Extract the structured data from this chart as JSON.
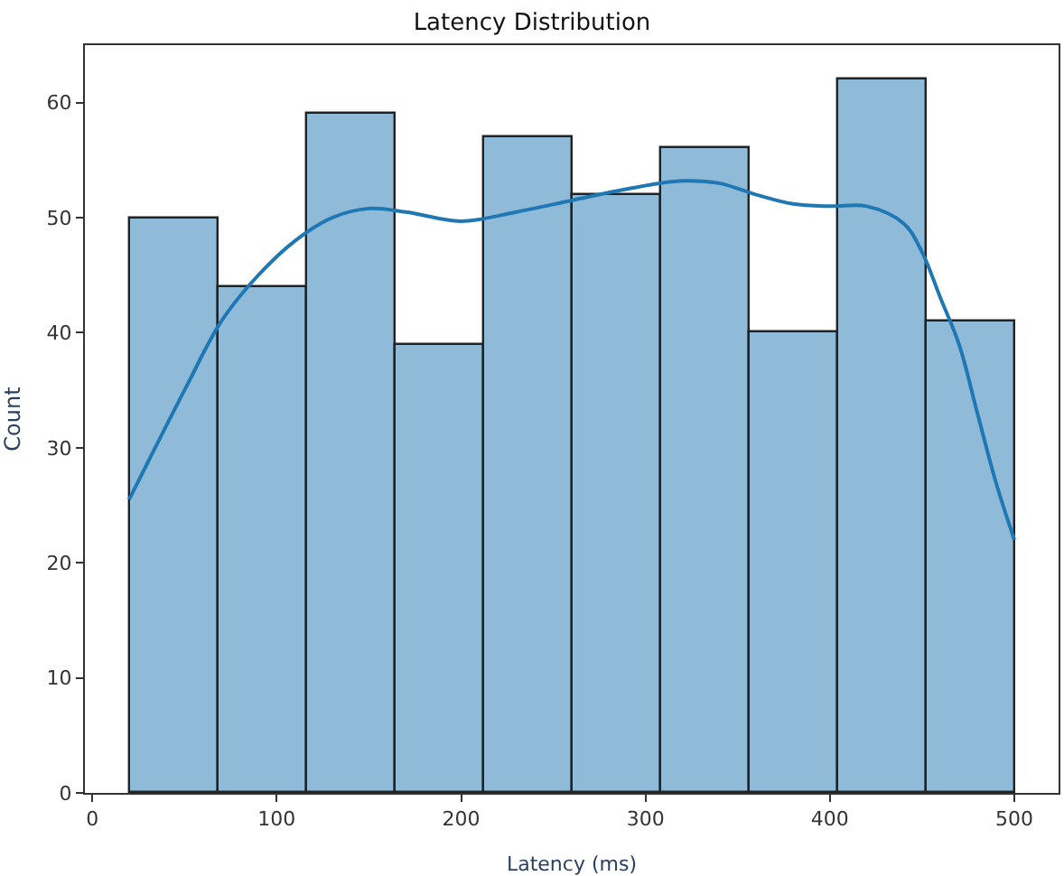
{
  "chart_data": {
    "type": "histogram",
    "title": "Latency Distribution",
    "xlabel": "Latency (ms)",
    "ylabel": "Count",
    "bins": [
      20,
      68,
      116,
      164,
      212,
      260,
      308,
      356,
      404,
      452,
      500
    ],
    "values": [
      50,
      44,
      59,
      39,
      57,
      52,
      56,
      40,
      62,
      41
    ],
    "color": "#8fbbd9",
    "series": [
      {
        "type": "line",
        "color": "#1f77b4",
        "x": [
          20,
          50,
          70,
          90,
          110,
          130,
          150,
          170,
          200,
          230,
          260,
          290,
          320,
          340,
          360,
          380,
          400,
          420,
          440,
          450,
          460,
          470,
          480,
          490,
          500
        ],
        "values": [
          25.5,
          35,
          41,
          45,
          48,
          50,
          50.8,
          50.5,
          49.7,
          50.5,
          51.5,
          52.5,
          53.2,
          53,
          52,
          51.2,
          51,
          51,
          49.5,
          47,
          43,
          39,
          33,
          27,
          22
        ]
      }
    ],
    "xlim": [
      -4,
      524
    ],
    "ylim": [
      0,
      65
    ],
    "xticks": [
      0,
      100,
      200,
      300,
      400,
      500
    ],
    "yticks": [
      0,
      10,
      20,
      30,
      40,
      50,
      60
    ]
  }
}
